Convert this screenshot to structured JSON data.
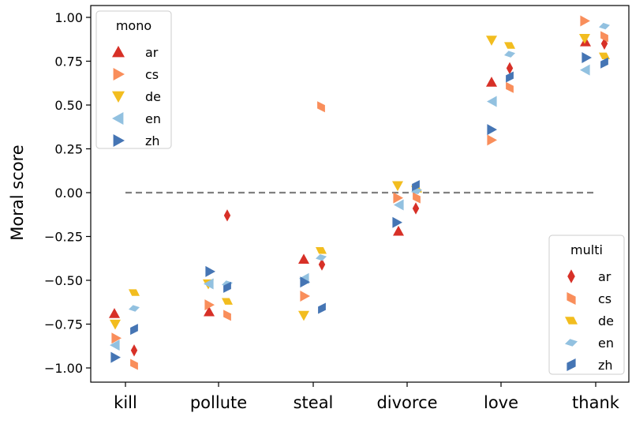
{
  "chart_data": {
    "type": "scatter",
    "ylabel": "Moral score",
    "ylim": [
      -1.1,
      1.06
    ],
    "yticks": [
      1.0,
      0.75,
      0.5,
      0.25,
      0.0,
      -0.25,
      -0.5,
      -0.75,
      -1.0
    ],
    "ytick_labels": [
      "1.00",
      "0.75",
      "0.50",
      "0.25",
      "0.00",
      "−0.25",
      "−0.50",
      "−0.75",
      "−1.00"
    ],
    "categories": [
      "kill",
      "pollute",
      "steal",
      "divorce",
      "love",
      "thank"
    ],
    "reference_line": {
      "y": 0.0,
      "style": "dashed",
      "color": "#808080"
    },
    "colors": {
      "ar": "#d73027",
      "cs": "#f98e5b",
      "de": "#f2bd1f",
      "en": "#92c1e0",
      "zh": "#4575b4"
    },
    "groups": [
      {
        "legend_title": "mono",
        "legend_position": "upper-left",
        "series": [
          {
            "name": "ar",
            "marker": "triangle-up",
            "values": [
              -0.69,
              -0.68,
              -0.38,
              -0.22,
              0.63,
              0.86
            ]
          },
          {
            "name": "cs",
            "marker": "triangle-right",
            "values": [
              -0.83,
              -0.64,
              -0.59,
              -0.03,
              0.3,
              0.98
            ]
          },
          {
            "name": "de",
            "marker": "triangle-down",
            "values": [
              -0.75,
              -0.52,
              -0.7,
              0.04,
              0.87,
              0.88
            ]
          },
          {
            "name": "en",
            "marker": "triangle-left",
            "values": [
              -0.87,
              -0.52,
              -0.49,
              -0.07,
              0.52,
              0.7
            ]
          },
          {
            "name": "zh",
            "marker": "triangle-right",
            "values": [
              -0.94,
              -0.45,
              -0.51,
              -0.17,
              0.36,
              0.77
            ]
          }
        ]
      },
      {
        "legend_title": "multi",
        "legend_position": "lower-right",
        "series": [
          {
            "name": "ar",
            "marker": "thin-diamond",
            "values": [
              -0.9,
              -0.13,
              -0.41,
              -0.09,
              0.71,
              0.85
            ]
          },
          {
            "name": "cs",
            "marker": "parallelogram",
            "values": [
              -0.98,
              -0.7,
              0.49,
              -0.03,
              0.6,
              0.89
            ]
          },
          {
            "name": "de",
            "marker": "parallelogram",
            "values": [
              -0.57,
              -0.62,
              -0.33,
              0.02,
              0.84,
              0.78
            ]
          },
          {
            "name": "en",
            "marker": "parallelogram",
            "values": [
              -0.66,
              -0.52,
              -0.37,
              0.01,
              0.79,
              0.95
            ]
          },
          {
            "name": "zh",
            "marker": "parallelogram",
            "values": [
              -0.78,
              -0.54,
              -0.66,
              0.04,
              0.66,
              0.74
            ]
          }
        ]
      }
    ]
  }
}
